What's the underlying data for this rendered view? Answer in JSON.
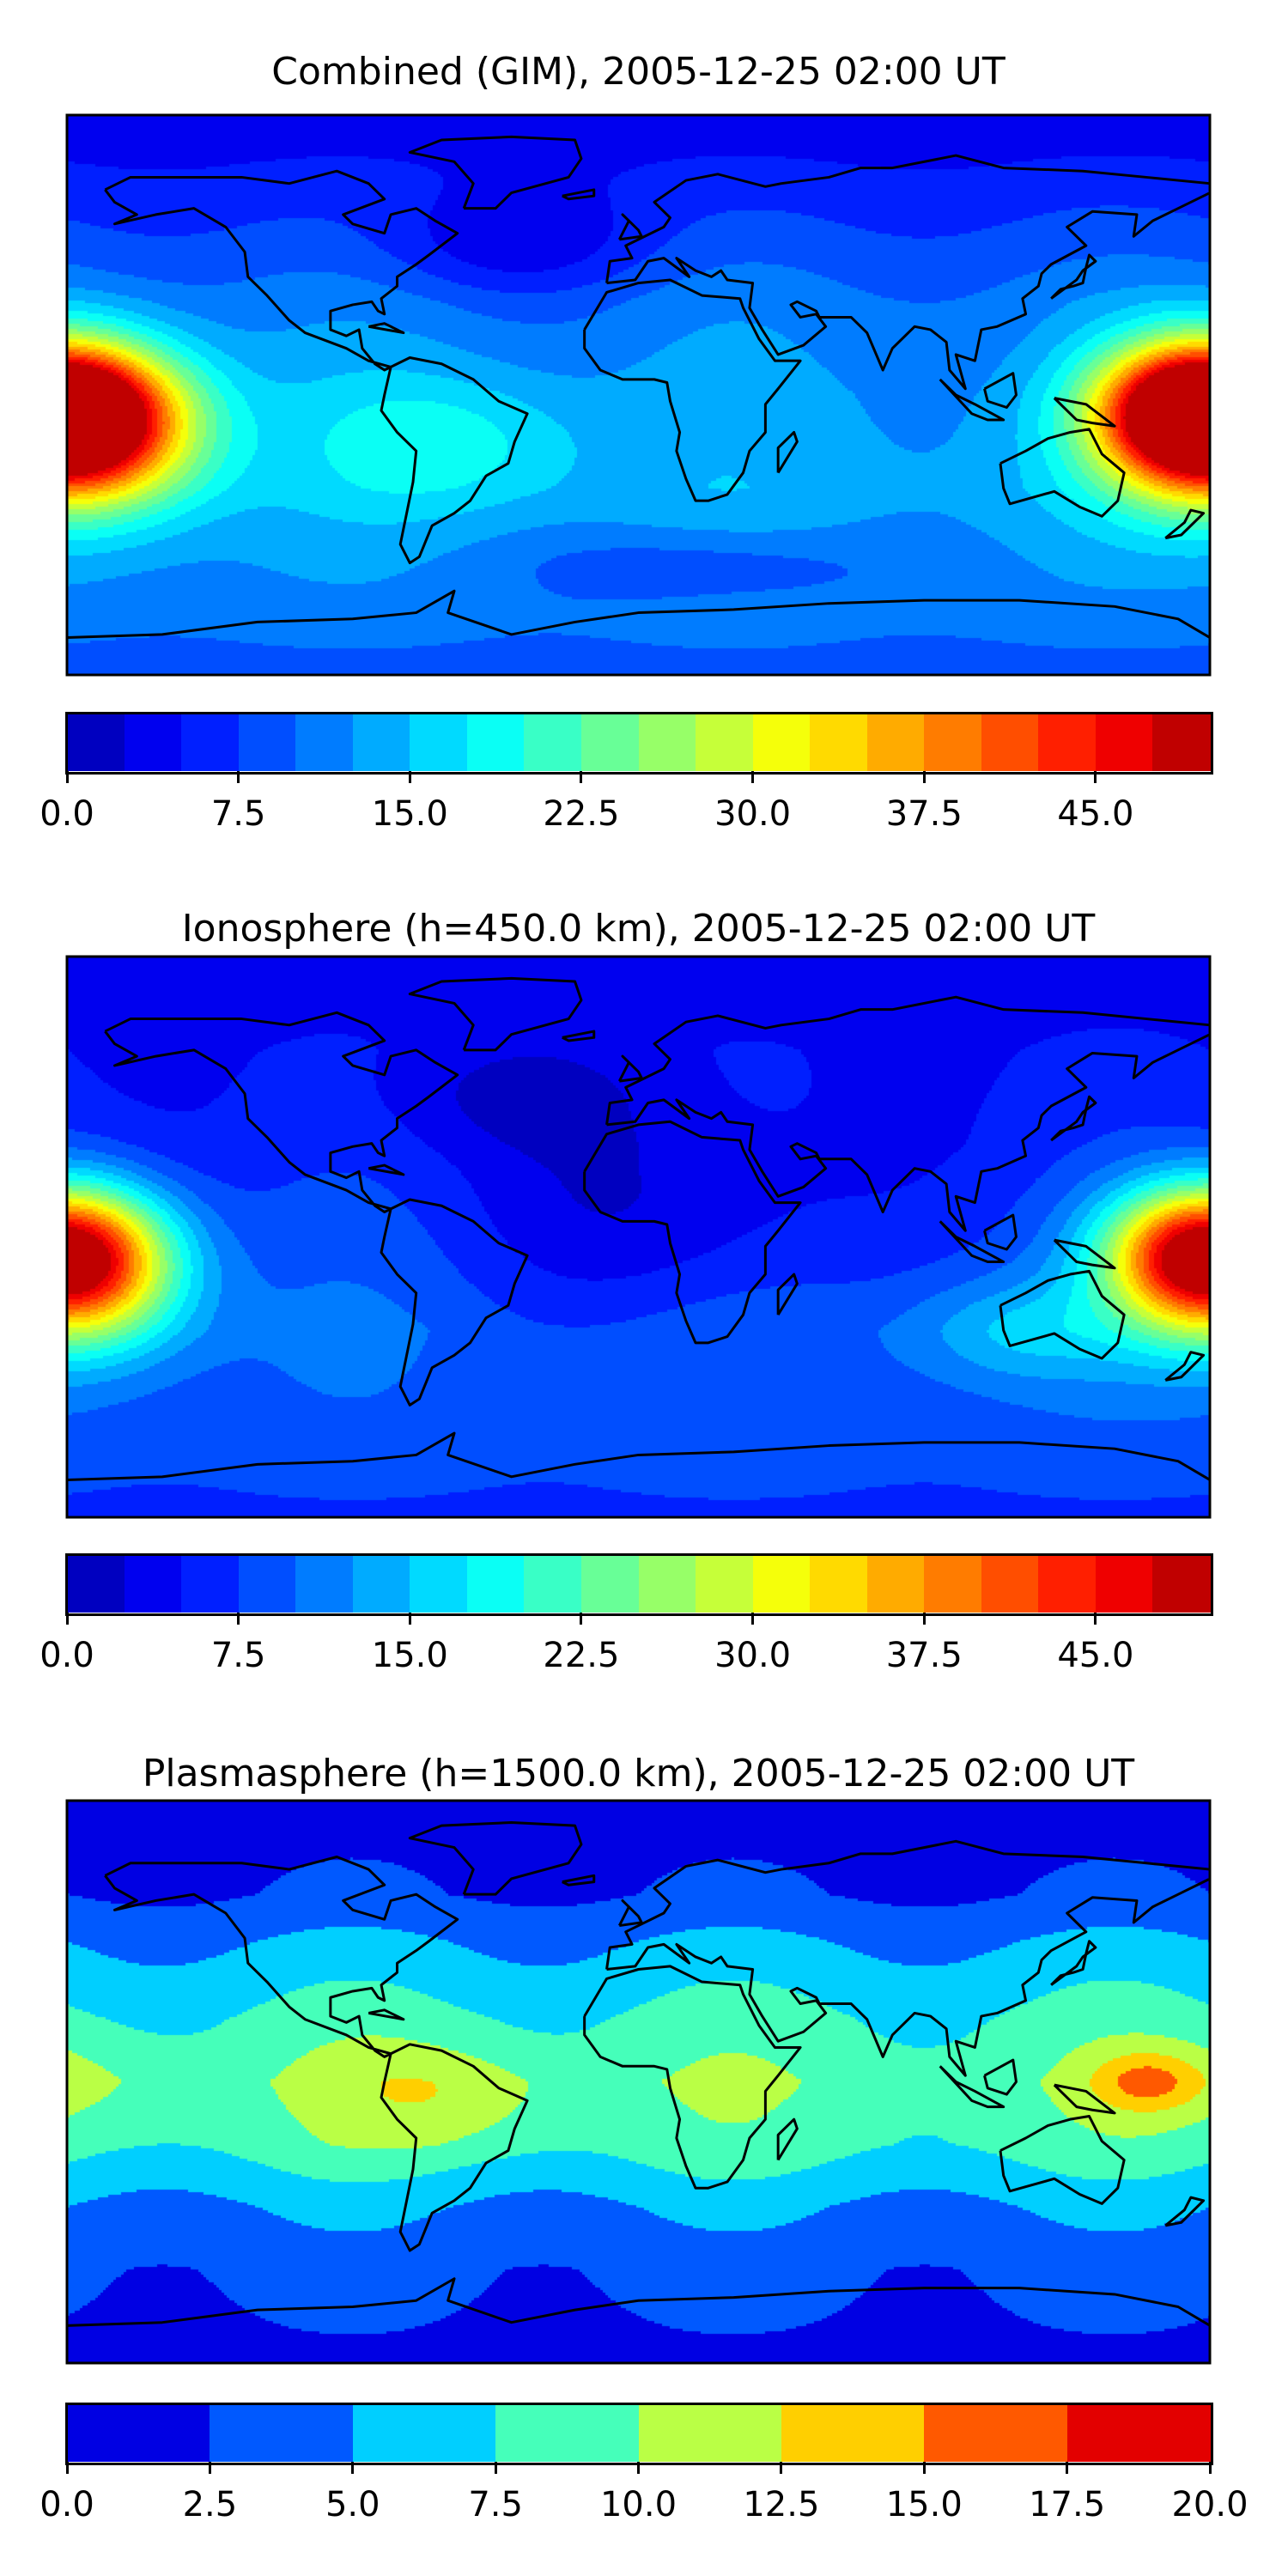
{
  "chart_data": [
    {
      "type": "heatmap",
      "title": "Combined (GIM), 2005-12-25 02:00 UT",
      "colorbar": {
        "min": 0,
        "max": 50,
        "step": 2.5,
        "ticks": [
          "0.0",
          "7.5",
          "15.0",
          "22.5",
          "30.0",
          "37.5",
          "45.0"
        ],
        "tick_values": [
          0,
          7.5,
          15,
          22.5,
          30,
          37.5,
          45
        ]
      },
      "lon_range": [
        -180,
        180
      ],
      "lat_range": [
        -90,
        90
      ],
      "field": {
        "base_by_lat": [
          [
            90,
            3
          ],
          [
            60,
            7
          ],
          [
            30,
            11
          ],
          [
            0,
            13
          ],
          [
            -30,
            14
          ],
          [
            -60,
            12
          ],
          [
            -90,
            9
          ]
        ],
        "blobs": [
          {
            "lon": -175,
            "lat": -10,
            "slon": 25,
            "slat": 18,
            "amp": 36
          },
          {
            "lon": 175,
            "lat": -5,
            "slon": 20,
            "slat": 14,
            "amp": 32
          },
          {
            "lon": -60,
            "lat": -15,
            "slon": 30,
            "slat": 15,
            "amp": 6
          },
          {
            "lon": 20,
            "lat": -55,
            "slon": 40,
            "slat": 8,
            "amp": -4
          },
          {
            "lon": -40,
            "lat": 48,
            "slon": 30,
            "slat": 12,
            "amp": -5
          }
        ]
      }
    },
    {
      "type": "heatmap",
      "title": "Ionosphere  (h=450.0 km), 2005-12-25 02:00 UT",
      "colorbar": {
        "min": 0,
        "max": 50,
        "step": 2.5,
        "ticks": [
          "0.0",
          "7.5",
          "15.0",
          "22.5",
          "30.0",
          "37.5",
          "45.0"
        ],
        "tick_values": [
          0,
          7.5,
          15,
          22.5,
          30,
          37.5,
          45
        ]
      },
      "lon_range": [
        -180,
        180
      ],
      "lat_range": [
        -90,
        90
      ],
      "field": {
        "base_by_lat": [
          [
            90,
            3
          ],
          [
            60,
            5
          ],
          [
            30,
            6
          ],
          [
            0,
            8
          ],
          [
            -30,
            10
          ],
          [
            -60,
            9
          ],
          [
            -90,
            7
          ]
        ],
        "blobs": [
          {
            "lon": -175,
            "lat": -10,
            "slon": 22,
            "slat": 18,
            "amp": 27
          },
          {
            "lon": 175,
            "lat": -5,
            "slon": 20,
            "slat": 14,
            "amp": 24
          },
          {
            "lon": 10,
            "lat": 5,
            "slon": 40,
            "slat": 25,
            "amp": -5
          },
          {
            "lon": -40,
            "lat": 45,
            "slon": 30,
            "slat": 12,
            "amp": -3
          },
          {
            "lon": 120,
            "lat": -30,
            "slon": 25,
            "slat": 12,
            "amp": 6
          }
        ]
      }
    },
    {
      "type": "heatmap",
      "title": "Plasmasphere (h=1500.0 km), 2005-12-25 02:00 UT",
      "colorbar": {
        "min": 0,
        "max": 20,
        "step": 2.5,
        "ticks": [
          "0.0",
          "2.5",
          "5.0",
          "7.5",
          "10.0",
          "12.5",
          "15.0",
          "17.5",
          "20.0"
        ],
        "tick_values": [
          0,
          2.5,
          5,
          7.5,
          10,
          12.5,
          15,
          17.5,
          20
        ]
      },
      "lon_range": [
        -180,
        180
      ],
      "lat_range": [
        -90,
        90
      ],
      "field": {
        "base_by_lat": [
          [
            90,
            1.5
          ],
          [
            60,
            2.5
          ],
          [
            45,
            5
          ],
          [
            20,
            8
          ],
          [
            0,
            9.5
          ],
          [
            -20,
            8.5
          ],
          [
            -40,
            5
          ],
          [
            -60,
            3
          ],
          [
            -90,
            2
          ]
        ],
        "blobs": [
          {
            "lon": -60,
            "lat": -5,
            "slon": 25,
            "slat": 12,
            "amp": 3
          },
          {
            "lon": 160,
            "lat": 0,
            "slon": 12,
            "slat": 7,
            "amp": 5.5
          },
          {
            "lon": -170,
            "lat": 0,
            "slon": 20,
            "slat": 10,
            "amp": 1.5
          }
        ]
      }
    }
  ]
}
